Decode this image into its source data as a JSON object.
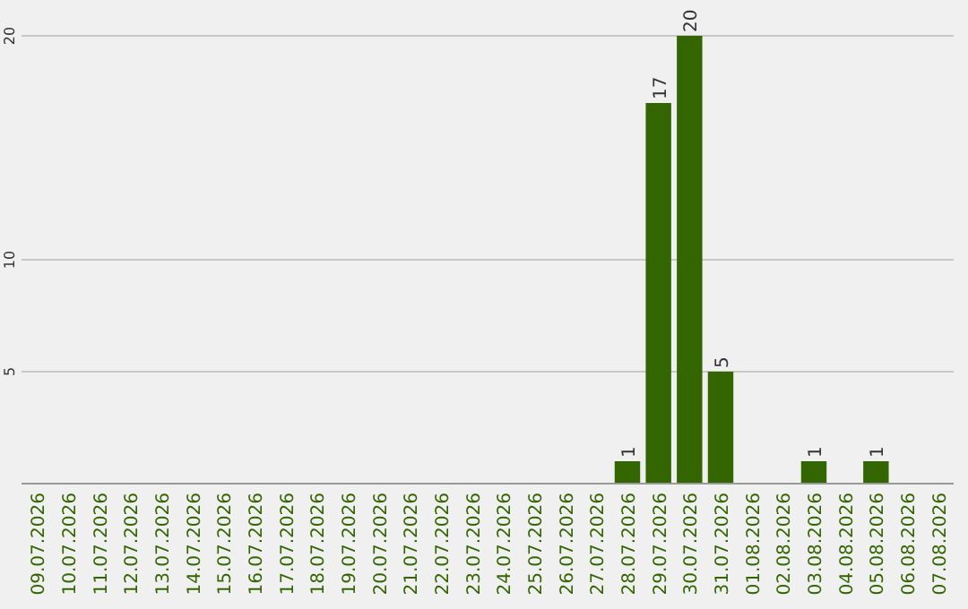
{
  "chart_data": {
    "type": "bar",
    "categories": [
      "09.07.2026",
      "10.07.2026",
      "11.07.2026",
      "12.07.2026",
      "13.07.2026",
      "14.07.2026",
      "15.07.2026",
      "16.07.2026",
      "17.07.2026",
      "18.07.2026",
      "19.07.2026",
      "20.07.2026",
      "21.07.2026",
      "22.07.2026",
      "23.07.2026",
      "24.07.2026",
      "25.07.2026",
      "26.07.2026",
      "27.07.2026",
      "28.07.2026",
      "29.07.2026",
      "30.07.2026",
      "31.07.2026",
      "01.08.2026",
      "02.08.2026",
      "03.08.2026",
      "04.08.2026",
      "05.08.2026",
      "06.08.2026",
      "07.08.2026"
    ],
    "values": [
      0,
      0,
      0,
      0,
      0,
      0,
      0,
      0,
      0,
      0,
      0,
      0,
      0,
      0,
      0,
      0,
      0,
      0,
      0,
      1,
      17,
      20,
      5,
      0,
      0,
      1,
      0,
      1,
      0,
      0
    ],
    "value_labels": [
      null,
      null,
      null,
      null,
      null,
      null,
      null,
      null,
      null,
      null,
      null,
      null,
      null,
      null,
      null,
      null,
      null,
      null,
      null,
      "1",
      "17",
      "20",
      "5",
      null,
      null,
      "1",
      null,
      "1",
      null,
      null
    ],
    "color": "#336600",
    "ylim": [
      0,
      20
    ],
    "yticks": [
      5,
      10,
      20
    ],
    "grid": "y"
  }
}
